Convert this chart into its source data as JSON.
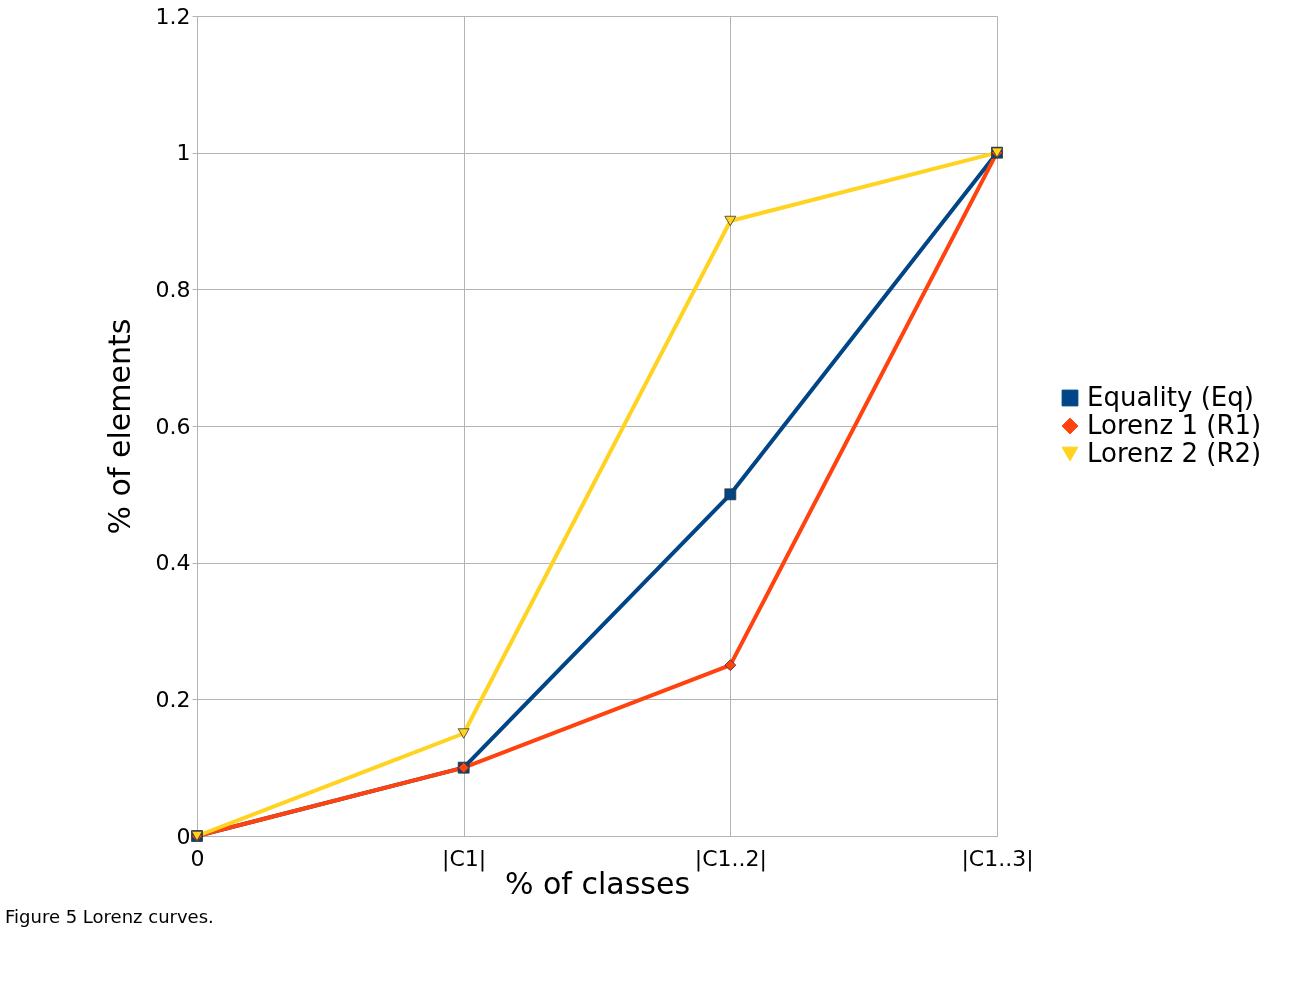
{
  "chart_data": {
    "type": "line",
    "categories": [
      "0",
      "|C1|",
      "|C1..2|",
      "|C1..3|"
    ],
    "xlabel": "% of classes",
    "ylabel": "% of elements",
    "ylim": [
      0,
      1.2
    ],
    "yticks": [
      0,
      0.2,
      0.4,
      0.6,
      0.8,
      1,
      1.2
    ],
    "grid": true,
    "legend": "right",
    "line_style": "solid",
    "annotations": [
      "Figure 5 Lorenz curves."
    ],
    "series": [
      {
        "name": "Equality (Eq)",
        "color": "#004586",
        "marker": "square",
        "values": [
          0,
          0.1,
          0.5,
          1
        ]
      },
      {
        "name": "Lorenz 1 (R1)",
        "color": "#ff420e",
        "marker": "diamond",
        "values": [
          0,
          0.1,
          0.25,
          1
        ]
      },
      {
        "name": "Lorenz 2 (R2)",
        "color": "#ffd320",
        "marker": "triangle",
        "values": [
          0,
          0.15,
          0.9,
          1
        ]
      }
    ]
  }
}
